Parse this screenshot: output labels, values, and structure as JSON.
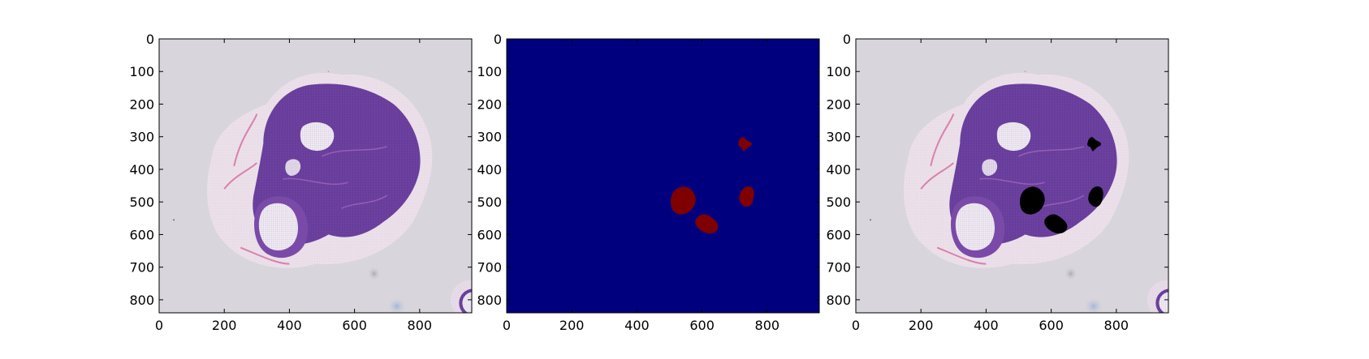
{
  "chart_data": [
    {
      "type": "heatmap",
      "content": "H&E stained tissue section image",
      "xlim": [
        0,
        960
      ],
      "ylim": [
        840,
        0
      ],
      "x_ticks": [
        "0",
        "200",
        "400",
        "600",
        "800"
      ],
      "y_ticks": [
        "0",
        "100",
        "200",
        "300",
        "400",
        "500",
        "600",
        "700",
        "800"
      ]
    },
    {
      "type": "heatmap",
      "content": "binary mask",
      "colormap": "jet",
      "background_color": "#00007f",
      "region_color": "#7f0000",
      "regions": [
        {
          "cx": 735,
          "cy": 322
        },
        {
          "cx": 548,
          "cy": 502
        },
        {
          "cx": 740,
          "cy": 490
        },
        {
          "cx": 615,
          "cy": 570
        }
      ],
      "xlim": [
        0,
        960
      ],
      "ylim": [
        840,
        0
      ],
      "x_ticks": [
        "0",
        "200",
        "400",
        "600",
        "800"
      ],
      "y_ticks": [
        "0",
        "100",
        "200",
        "300",
        "400",
        "500",
        "600",
        "700",
        "800"
      ]
    },
    {
      "type": "heatmap",
      "content": "tissue image with mask regions overlaid in black",
      "overlay_color": "#000000",
      "regions": [
        {
          "cx": 735,
          "cy": 322
        },
        {
          "cx": 548,
          "cy": 502
        },
        {
          "cx": 740,
          "cy": 490
        },
        {
          "cx": 615,
          "cy": 570
        }
      ],
      "xlim": [
        0,
        960
      ],
      "ylim": [
        840,
        0
      ],
      "x_ticks": [
        "0",
        "200",
        "400",
        "600",
        "800"
      ],
      "y_ticks": [
        "0",
        "100",
        "200",
        "300",
        "400",
        "500",
        "600",
        "700",
        "800"
      ]
    }
  ]
}
